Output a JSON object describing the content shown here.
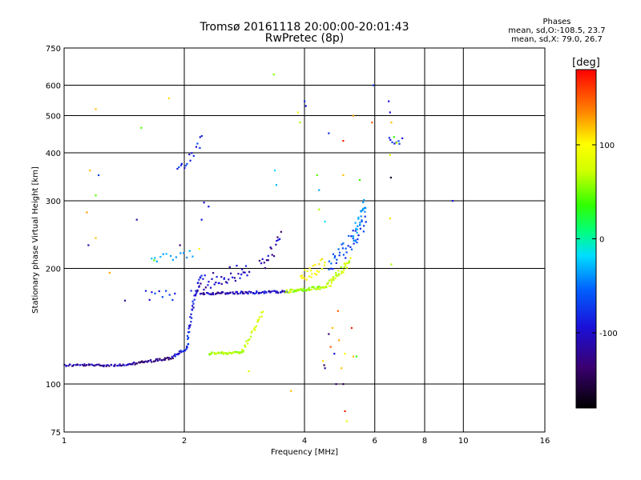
{
  "header": {
    "title_line1": "Tromsø 20161118 20:00:00-20:01:43",
    "title_line2": "RwPretec (8p)"
  },
  "phases": {
    "heading": "Phases",
    "line_o": "mean, sd,O:-108.5, 23.7",
    "line_x": "mean, sd,X:  79.0, 26.7"
  },
  "chart_data": {
    "type": "scatter",
    "xlabel": "Frequency [MHz]",
    "ylabel": "Stationary phase Virtual Height [km]",
    "xscale": "log",
    "yscale": "log",
    "xlim": [
      1,
      16
    ],
    "ylim": [
      75,
      750
    ],
    "xticks": [
      1,
      2,
      4,
      6,
      8,
      10,
      16
    ],
    "xtick_labels": [
      "1",
      "2",
      "4",
      "6",
      "8",
      "10",
      "16"
    ],
    "yticks": [
      75,
      100,
      200,
      300,
      400,
      500,
      600,
      750
    ],
    "ytick_labels": [
      "75",
      "100",
      "200",
      "300",
      "400",
      "500",
      "600",
      "750"
    ],
    "grid": true,
    "colorbar": {
      "label": "[deg]",
      "range": [
        -180,
        180
      ],
      "ticks": [
        100,
        0,
        -100
      ],
      "tick_labels": [
        "100",
        "0",
        "-100"
      ]
    },
    "series": [
      {
        "comment_note": "",
        "traces": [
          {
            "x0": 1.0,
            "x1": 1.48,
            "y0": 112,
            "y1": 112,
            "phase": -130,
            "n": 55,
            "jitter": 1.5
          },
          {
            "x0": 1.48,
            "x1": 1.87,
            "y0": 113,
            "y1": 117,
            "phase": -140,
            "n": 40,
            "jitter": 1.5
          },
          {
            "x0": 1.87,
            "x1": 2.04,
            "y0": 118,
            "y1": 124,
            "phase": -120,
            "n": 18,
            "jitter": 1.5
          },
          {
            "x0": 2.03,
            "x1": 2.1,
            "y0": 125,
            "y1": 160,
            "phase": -110,
            "n": 20,
            "jitter": 3
          },
          {
            "x0": 2.1,
            "x1": 2.2,
            "y0": 160,
            "y1": 195,
            "phase": -120,
            "n": 14,
            "jitter": 4
          },
          {
            "x0": 2.2,
            "x1": 3.6,
            "y0": 172,
            "y1": 174,
            "phase": -125,
            "n": 80,
            "jitter": 1.5
          },
          {
            "x0": 3.6,
            "x1": 4.55,
            "y0": 174,
            "y1": 179,
            "phase": 60,
            "n": 50,
            "jitter": 2
          },
          {
            "x0": 4.55,
            "x1": 5.2,
            "y0": 180,
            "y1": 210,
            "phase": 70,
            "n": 35,
            "jitter": 5
          },
          {
            "x0": 2.3,
            "x1": 2.8,
            "y0": 120,
            "y1": 121,
            "phase": 60,
            "n": 35,
            "jitter": 1.5
          },
          {
            "x0": 2.8,
            "x1": 3.15,
            "y0": 122,
            "y1": 155,
            "phase": 75,
            "n": 22,
            "jitter": 3
          },
          {
            "x0": 1.92,
            "x1": 2.22,
            "y0": 360,
            "y1": 430,
            "phase": -110,
            "n": 16,
            "jitter": 8
          },
          {
            "x0": 4.6,
            "x1": 5.7,
            "y0": 200,
            "y1": 260,
            "phase": -100,
            "n": 40,
            "jitter": 12
          },
          {
            "x0": 5.3,
            "x1": 5.7,
            "y0": 240,
            "y1": 300,
            "phase": -60,
            "n": 25,
            "jitter": 10
          },
          {
            "x0": 2.15,
            "x1": 2.9,
            "y0": 180,
            "y1": 200,
            "phase": -125,
            "n": 40,
            "jitter": 10
          },
          {
            "x0": 3.1,
            "x1": 3.5,
            "y0": 200,
            "y1": 240,
            "phase": -130,
            "n": 18,
            "jitter": 10
          },
          {
            "x0": 1.65,
            "x1": 2.1,
            "y0": 210,
            "y1": 220,
            "phase": -50,
            "n": 14,
            "jitter": 6
          },
          {
            "x0": 1.6,
            "x1": 1.9,
            "y0": 170,
            "y1": 170,
            "phase": -110,
            "n": 10,
            "jitter": 6
          },
          {
            "x0": 3.9,
            "x1": 4.5,
            "y0": 190,
            "y1": 205,
            "phase": 100,
            "n": 25,
            "jitter": 8
          },
          {
            "x0": 6.5,
            "x1": 7.0,
            "y0": 430,
            "y1": 430,
            "phase": -110,
            "n": 8,
            "jitter": 4
          }
        ],
        "points": [
          [
            1.2,
            520,
            120
          ],
          [
            1.2,
            310,
            40
          ],
          [
            1.2,
            240,
            120
          ],
          [
            1.22,
            350,
            -100
          ],
          [
            1.16,
            360,
            120
          ],
          [
            1.14,
            280,
            130
          ],
          [
            1.15,
            230,
            -130
          ],
          [
            1.3,
            195,
            130
          ],
          [
            1.42,
            165,
            -130
          ],
          [
            1.52,
            268,
            -130
          ],
          [
            1.56,
            465,
            40
          ],
          [
            1.68,
            210,
            40
          ],
          [
            1.83,
            555,
            110
          ],
          [
            1.95,
            230,
            -140
          ],
          [
            2.08,
            175,
            -110
          ],
          [
            2.18,
            225,
            100
          ],
          [
            2.21,
            268,
            -120
          ],
          [
            2.24,
            297,
            -120
          ],
          [
            2.3,
            290,
            -120
          ],
          [
            2.18,
            180,
            -130
          ],
          [
            3.35,
            640,
            50
          ],
          [
            3.37,
            360,
            -20
          ],
          [
            3.4,
            330,
            -40
          ],
          [
            3.85,
            510,
            90
          ],
          [
            3.9,
            480,
            60
          ],
          [
            4.0,
            545,
            -110
          ],
          [
            4.03,
            530,
            -120
          ],
          [
            4.3,
            350,
            40
          ],
          [
            4.35,
            320,
            -50
          ],
          [
            4.6,
            450,
            -110
          ],
          [
            5.0,
            350,
            120
          ],
          [
            5.3,
            500,
            130
          ],
          [
            5.5,
            340,
            30
          ],
          [
            5.95,
            600,
            -110
          ],
          [
            5.9,
            480,
            150
          ],
          [
            6.5,
            545,
            -120
          ],
          [
            6.55,
            510,
            -120
          ],
          [
            6.6,
            480,
            120
          ],
          [
            6.7,
            440,
            30
          ],
          [
            6.8,
            425,
            60
          ],
          [
            6.55,
            270,
            110
          ],
          [
            6.6,
            205,
            60
          ],
          [
            6.58,
            345,
            -170
          ],
          [
            6.55,
            395,
            80
          ],
          [
            9.4,
            300,
            -120
          ],
          [
            5.0,
            430,
            170
          ],
          [
            3.7,
            96,
            120
          ],
          [
            4.45,
            115,
            110
          ],
          [
            4.48,
            112,
            -150
          ],
          [
            4.5,
            110,
            -130
          ],
          [
            4.6,
            135,
            -140
          ],
          [
            4.65,
            125,
            150
          ],
          [
            4.75,
            120,
            -120
          ],
          [
            4.85,
            155,
            150
          ],
          [
            4.88,
            130,
            130
          ],
          [
            4.95,
            110,
            120
          ],
          [
            5.0,
            100,
            -150
          ],
          [
            5.05,
            120,
            100
          ],
          [
            5.05,
            85,
            170
          ],
          [
            5.1,
            80,
            90
          ],
          [
            4.7,
            140,
            120
          ],
          [
            5.25,
            140,
            170
          ],
          [
            5.3,
            118,
            120
          ],
          [
            5.4,
            118,
            30
          ],
          [
            2.9,
            108,
            80
          ],
          [
            4.8,
            100,
            -140
          ],
          [
            4.5,
            265,
            -20
          ],
          [
            4.35,
            285,
            60
          ]
        ]
      }
    ]
  }
}
